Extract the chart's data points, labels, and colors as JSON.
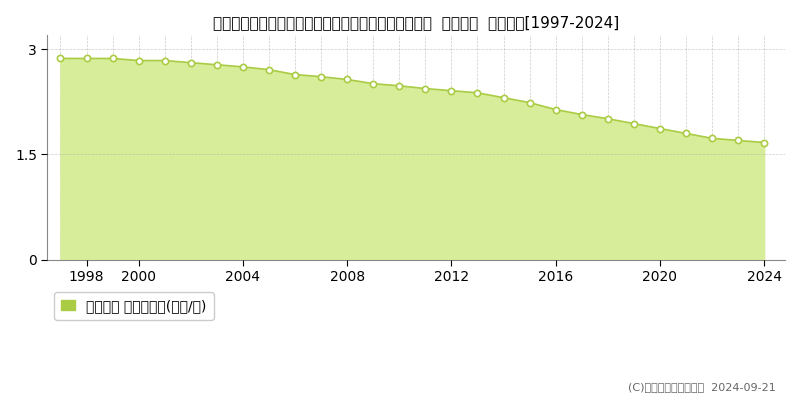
{
  "title": "愛知県北設楽郡東栄町大字振草字古戸磨谷２１番１外  基準地価  地価推移[1997-2024]",
  "years": [
    1997,
    1998,
    1999,
    2000,
    2001,
    2002,
    2003,
    2004,
    2005,
    2006,
    2007,
    2008,
    2009,
    2010,
    2011,
    2012,
    2013,
    2014,
    2015,
    2016,
    2017,
    2018,
    2019,
    2020,
    2021,
    2022,
    2023,
    2024
  ],
  "values": [
    2.87,
    2.87,
    2.87,
    2.84,
    2.84,
    2.81,
    2.78,
    2.75,
    2.71,
    2.64,
    2.61,
    2.57,
    2.51,
    2.48,
    2.44,
    2.41,
    2.38,
    2.31,
    2.24,
    2.14,
    2.07,
    2.01,
    1.94,
    1.87,
    1.8,
    1.73,
    1.7,
    1.67
  ],
  "line_color": "#aacc44",
  "fill_color": "#d8ed99",
  "marker_face_color": "#ffffff",
  "marker_edge_color": "#aacc44",
  "grid_color": "#aaaaaa",
  "background_color": "#ffffff",
  "yticks": [
    0,
    1.5,
    3
  ],
  "xticks": [
    1998,
    2000,
    2004,
    2008,
    2012,
    2016,
    2020,
    2024
  ],
  "xlim": [
    1996.5,
    2024.8
  ],
  "ylim": [
    0,
    3.2
  ],
  "legend_label": "基準地価 平均坪単価(万円/坪)",
  "copyright_text": "(C)土地価格ドットコム  2024-09-21",
  "title_fontsize": 11,
  "tick_fontsize": 10,
  "legend_fontsize": 10
}
